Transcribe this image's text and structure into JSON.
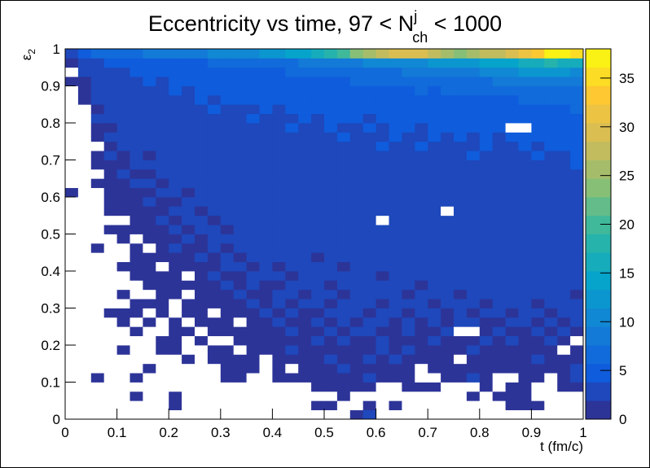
{
  "chart_data": {
    "type": "heatmap",
    "title_parts": [
      "Eccentricity vs time, 97 < N",
      "j",
      "ch",
      " < 1000"
    ],
    "x_label": "t (fm/c)",
    "y_label_parts": [
      "ε",
      "2"
    ],
    "xlim": [
      0,
      1
    ],
    "ylim": [
      0,
      1
    ],
    "zlim": [
      0,
      38
    ],
    "xticks": [
      0,
      0.1,
      0.2,
      0.3,
      0.4,
      0.5,
      0.6,
      0.7,
      0.8,
      0.9,
      1
    ],
    "yticks": [
      0,
      0.1,
      0.2,
      0.3,
      0.4,
      0.5,
      0.6,
      0.7,
      0.8,
      0.9,
      1
    ],
    "zticks": [
      0,
      5,
      10,
      15,
      20,
      25,
      30,
      35
    ],
    "contours": 20,
    "colorscale": [
      "#352a87",
      "#0f5cdd",
      "#1481d6",
      "#06a4ca",
      "#2eb7a4",
      "#87bf77",
      "#d1bb59",
      "#fec832",
      "#f9fb0e"
    ],
    "z": [
      [
        0,
        0,
        0,
        0,
        0,
        0,
        0,
        0,
        0,
        0,
        0,
        0,
        0,
        0,
        0,
        0,
        0,
        0,
        0,
        0,
        0,
        0,
        1,
        2,
        0,
        0,
        0,
        0,
        0,
        0,
        0,
        0,
        0,
        0,
        0,
        0,
        0,
        0,
        0,
        0
      ],
      [
        0,
        0,
        0,
        0,
        0,
        0,
        0,
        0,
        1,
        0,
        0,
        0,
        0,
        0,
        0,
        0,
        0,
        0,
        0,
        1,
        1,
        0,
        0,
        1,
        0,
        1,
        0,
        0,
        0,
        0,
        0,
        0,
        0,
        0,
        1,
        1,
        1,
        0,
        0,
        0
      ],
      [
        0,
        0,
        0,
        0,
        0,
        1,
        0,
        0,
        1,
        0,
        0,
        0,
        0,
        0,
        0,
        0,
        0,
        0,
        0,
        0,
        0,
        1,
        0,
        0,
        0,
        0,
        0,
        0,
        0,
        0,
        0,
        1,
        0,
        1,
        1,
        1,
        0,
        0,
        0,
        0
      ],
      [
        0,
        0,
        0,
        0,
        0,
        0,
        0,
        0,
        0,
        0,
        0,
        0,
        0,
        0,
        0,
        0,
        0,
        0,
        0,
        1,
        1,
        1,
        1,
        1,
        0,
        0,
        1,
        1,
        1,
        0,
        0,
        0,
        1,
        0,
        1,
        1,
        0,
        0,
        1,
        1
      ],
      [
        0,
        0,
        1,
        0,
        0,
        1,
        0,
        0,
        0,
        0,
        0,
        0,
        1,
        1,
        0,
        0,
        1,
        1,
        1,
        1,
        1,
        1,
        1,
        2,
        1,
        1,
        1,
        0,
        0,
        1,
        1,
        2,
        1,
        0,
        0,
        1,
        1,
        0,
        1,
        2
      ],
      [
        0,
        0,
        0,
        0,
        0,
        0,
        1,
        0,
        0,
        0,
        0,
        0,
        1,
        1,
        1,
        0,
        1,
        0,
        1,
        1,
        1,
        2,
        1,
        1,
        1,
        1,
        1,
        0,
        1,
        1,
        1,
        1,
        1,
        1,
        1,
        1,
        1,
        1,
        1,
        2
      ],
      [
        0,
        0,
        0,
        0,
        0,
        0,
        0,
        0,
        0,
        1,
        0,
        1,
        1,
        1,
        1,
        0,
        1,
        1,
        1,
        1,
        2,
        1,
        1,
        2,
        1,
        2,
        1,
        1,
        1,
        1,
        0,
        1,
        1,
        1,
        1,
        1,
        2,
        1,
        1,
        1
      ],
      [
        0,
        0,
        0,
        0,
        1,
        0,
        0,
        1,
        1,
        0,
        0,
        1,
        1,
        0,
        1,
        1,
        1,
        2,
        1,
        1,
        1,
        1,
        1,
        1,
        2,
        1,
        2,
        1,
        1,
        1,
        1,
        2,
        1,
        1,
        1,
        1,
        1,
        1,
        0,
        1
      ],
      [
        0,
        0,
        0,
        0,
        0,
        0,
        0,
        1,
        1,
        0,
        1,
        0,
        0,
        1,
        1,
        1,
        1,
        1,
        1,
        2,
        1,
        2,
        1,
        1,
        2,
        1,
        1,
        1,
        2,
        1,
        1,
        1,
        2,
        1,
        2,
        1,
        1,
        2,
        1,
        0
      ],
      [
        0,
        0,
        0,
        0,
        0,
        1,
        0,
        0,
        1,
        1,
        0,
        1,
        1,
        1,
        1,
        1,
        1,
        2,
        1,
        1,
        2,
        1,
        2,
        2,
        1,
        1,
        2,
        1,
        1,
        2,
        0,
        0,
        1,
        2,
        1,
        1,
        2,
        1,
        2,
        1
      ],
      [
        0,
        0,
        0,
        0,
        1,
        0,
        1,
        0,
        1,
        0,
        1,
        1,
        1,
        0,
        1,
        1,
        2,
        1,
        1,
        2,
        1,
        2,
        1,
        2,
        2,
        1,
        2,
        1,
        2,
        1,
        2,
        2,
        1,
        1,
        2,
        2,
        1,
        2,
        1,
        2
      ],
      [
        0,
        0,
        0,
        1,
        1,
        1,
        0,
        1,
        0,
        1,
        1,
        0,
        1,
        1,
        1,
        2,
        1,
        2,
        1,
        1,
        2,
        2,
        2,
        1,
        2,
        3,
        1,
        2,
        2,
        1,
        2,
        1,
        2,
        2,
        1,
        2,
        2,
        1,
        2,
        2
      ],
      [
        0,
        0,
        0,
        0,
        0,
        1,
        1,
        1,
        0,
        1,
        1,
        1,
        1,
        1,
        2,
        1,
        2,
        1,
        2,
        2,
        1,
        2,
        2,
        2,
        1,
        2,
        2,
        2,
        1,
        2,
        2,
        2,
        1,
        2,
        2,
        2,
        1,
        2,
        2,
        2
      ],
      [
        0,
        0,
        0,
        0,
        1,
        0,
        0,
        1,
        1,
        0,
        1,
        1,
        1,
        2,
        1,
        1,
        2,
        2,
        1,
        2,
        2,
        1,
        2,
        2,
        2,
        2,
        1,
        2,
        2,
        2,
        1,
        2,
        2,
        3,
        2,
        2,
        2,
        2,
        2,
        1
      ],
      [
        0,
        0,
        0,
        0,
        0,
        0,
        1,
        1,
        1,
        1,
        1,
        1,
        2,
        1,
        2,
        1,
        1,
        2,
        2,
        2,
        1,
        2,
        2,
        2,
        2,
        2,
        2,
        1,
        2,
        2,
        2,
        2,
        2,
        2,
        2,
        2,
        2,
        2,
        2,
        2
      ],
      [
        0,
        0,
        0,
        0,
        0,
        1,
        1,
        1,
        1,
        0,
        1,
        2,
        1,
        1,
        2,
        2,
        2,
        1,
        2,
        2,
        2,
        2,
        2,
        2,
        1,
        2,
        2,
        2,
        2,
        3,
        2,
        2,
        2,
        2,
        2,
        2,
        2,
        3,
        2,
        2
      ],
      [
        0,
        0,
        0,
        0,
        1,
        1,
        1,
        0,
        1,
        1,
        1,
        1,
        2,
        2,
        1,
        2,
        1,
        2,
        2,
        2,
        2,
        1,
        2,
        2,
        2,
        2,
        2,
        2,
        3,
        2,
        2,
        2,
        2,
        2,
        2,
        2,
        2,
        2,
        3,
        2
      ],
      [
        0,
        0,
        0,
        0,
        0,
        1,
        1,
        1,
        1,
        1,
        2,
        1,
        2,
        1,
        2,
        2,
        2,
        2,
        2,
        1,
        2,
        2,
        2,
        2,
        2,
        2,
        3,
        2,
        2,
        2,
        2,
        3,
        2,
        2,
        2,
        3,
        2,
        2,
        2,
        2
      ],
      [
        0,
        0,
        1,
        0,
        0,
        1,
        0,
        1,
        2,
        1,
        1,
        2,
        1,
        2,
        2,
        2,
        2,
        2,
        2,
        2,
        2,
        3,
        2,
        2,
        2,
        2,
        2,
        2,
        3,
        2,
        2,
        2,
        3,
        2,
        2,
        2,
        2,
        3,
        2,
        3
      ],
      [
        0,
        0,
        0,
        0,
        1,
        0,
        1,
        1,
        1,
        2,
        1,
        2,
        2,
        2,
        2,
        2,
        2,
        3,
        2,
        2,
        2,
        2,
        3,
        2,
        2,
        3,
        2,
        2,
        2,
        2,
        3,
        2,
        2,
        3,
        2,
        3,
        2,
        2,
        3,
        2
      ],
      [
        0,
        0,
        0,
        1,
        1,
        1,
        1,
        1,
        2,
        1,
        2,
        2,
        1,
        2,
        2,
        2,
        2,
        2,
        2,
        3,
        2,
        2,
        2,
        3,
        2,
        2,
        3,
        2,
        3,
        2,
        2,
        3,
        2,
        2,
        3,
        2,
        3,
        2,
        2,
        3
      ],
      [
        0,
        0,
        0,
        0,
        0,
        1,
        1,
        2,
        1,
        2,
        2,
        1,
        2,
        2,
        3,
        2,
        2,
        2,
        2,
        2,
        3,
        2,
        2,
        2,
        0,
        2,
        3,
        2,
        2,
        3,
        2,
        2,
        3,
        2,
        3,
        2,
        2,
        3,
        2,
        3
      ],
      [
        0,
        0,
        0,
        1,
        1,
        1,
        1,
        1,
        2,
        2,
        1,
        2,
        2,
        2,
        2,
        2,
        3,
        2,
        2,
        3,
        2,
        2,
        3,
        2,
        2,
        3,
        2,
        3,
        2,
        0,
        2,
        2,
        3,
        2,
        3,
        3,
        2,
        2,
        3,
        3
      ],
      [
        0,
        0,
        0,
        1,
        1,
        1,
        2,
        1,
        1,
        2,
        2,
        2,
        2,
        2,
        2,
        3,
        2,
        2,
        3,
        2,
        2,
        3,
        2,
        3,
        2,
        2,
        3,
        2,
        3,
        2,
        3,
        2,
        2,
        3,
        2,
        3,
        3,
        2,
        3,
        3
      ],
      [
        1,
        0,
        0,
        1,
        1,
        1,
        1,
        2,
        2,
        1,
        2,
        2,
        3,
        2,
        2,
        2,
        2,
        3,
        2,
        2,
        3,
        2,
        2,
        2,
        3,
        2,
        3,
        3,
        2,
        3,
        2,
        3,
        3,
        2,
        3,
        2,
        3,
        3,
        2,
        3
      ],
      [
        0,
        0,
        1,
        1,
        1,
        2,
        2,
        1,
        2,
        2,
        2,
        2,
        2,
        2,
        3,
        2,
        2,
        2,
        3,
        2,
        3,
        2,
        3,
        2,
        2,
        3,
        2,
        3,
        3,
        2,
        3,
        3,
        2,
        3,
        2,
        3,
        3,
        3,
        3,
        3
      ],
      [
        0,
        0,
        0,
        1,
        2,
        1,
        1,
        2,
        2,
        2,
        2,
        3,
        2,
        2,
        2,
        3,
        2,
        3,
        2,
        3,
        2,
        3,
        2,
        3,
        3,
        2,
        3,
        2,
        3,
        3,
        3,
        2,
        3,
        3,
        3,
        2,
        3,
        3,
        3,
        3
      ],
      [
        0,
        0,
        1,
        1,
        1,
        2,
        2,
        2,
        2,
        2,
        2,
        2,
        3,
        2,
        3,
        2,
        3,
        2,
        3,
        3,
        2,
        3,
        3,
        2,
        3,
        3,
        3,
        3,
        2,
        3,
        3,
        3,
        3,
        3,
        3,
        3,
        3,
        3,
        3,
        4
      ],
      [
        0,
        0,
        1,
        2,
        1,
        2,
        1,
        2,
        2,
        3,
        2,
        3,
        2,
        3,
        2,
        3,
        3,
        2,
        3,
        2,
        3,
        3,
        3,
        3,
        3,
        3,
        3,
        3,
        3,
        3,
        3,
        4,
        3,
        3,
        3,
        3,
        4,
        3,
        3,
        4
      ],
      [
        0,
        0,
        0,
        1,
        2,
        2,
        2,
        2,
        3,
        2,
        3,
        2,
        3,
        3,
        3,
        2,
        3,
        3,
        3,
        3,
        3,
        3,
        3,
        3,
        4,
        3,
        3,
        4,
        3,
        3,
        3,
        3,
        4,
        3,
        3,
        4,
        3,
        4,
        4,
        4
      ],
      [
        0,
        0,
        1,
        2,
        2,
        2,
        2,
        3,
        2,
        3,
        3,
        3,
        3,
        2,
        3,
        3,
        3,
        3,
        3,
        3,
        3,
        4,
        3,
        3,
        3,
        4,
        3,
        3,
        4,
        3,
        4,
        3,
        4,
        3,
        4,
        4,
        4,
        4,
        4,
        5
      ],
      [
        0,
        0,
        1,
        1,
        2,
        2,
        3,
        2,
        3,
        2,
        3,
        3,
        3,
        3,
        3,
        3,
        3,
        4,
        3,
        3,
        4,
        3,
        3,
        4,
        3,
        4,
        4,
        3,
        4,
        4,
        4,
        4,
        4,
        4,
        0,
        0,
        4,
        4,
        5,
        5
      ],
      [
        0,
        0,
        2,
        2,
        2,
        3,
        2,
        3,
        3,
        3,
        3,
        3,
        3,
        3,
        4,
        3,
        3,
        3,
        4,
        3,
        4,
        4,
        4,
        3,
        4,
        4,
        4,
        4,
        4,
        4,
        4,
        4,
        5,
        4,
        4,
        4,
        5,
        5,
        5,
        5
      ],
      [
        0,
        0,
        1,
        2,
        3,
        2,
        3,
        3,
        3,
        3,
        3,
        4,
        3,
        3,
        3,
        4,
        3,
        4,
        4,
        4,
        4,
        4,
        4,
        4,
        4,
        4,
        4,
        5,
        4,
        5,
        4,
        5,
        5,
        4,
        5,
        5,
        5,
        5,
        5,
        6
      ],
      [
        0,
        1,
        2,
        2,
        2,
        3,
        3,
        3,
        3,
        3,
        4,
        3,
        4,
        4,
        4,
        4,
        4,
        4,
        4,
        4,
        4,
        4,
        5,
        4,
        5,
        5,
        5,
        5,
        5,
        5,
        5,
        5,
        5,
        5,
        5,
        6,
        6,
        6,
        6,
        6
      ],
      [
        0,
        1,
        2,
        3,
        3,
        3,
        3,
        3,
        4,
        3,
        4,
        4,
        4,
        4,
        4,
        4,
        4,
        5,
        4,
        5,
        5,
        5,
        5,
        5,
        5,
        5,
        5,
        6,
        5,
        6,
        6,
        6,
        6,
        6,
        6,
        7,
        7,
        7,
        7,
        7
      ],
      [
        1,
        1,
        2,
        2,
        3,
        3,
        4,
        3,
        4,
        4,
        4,
        4,
        4,
        5,
        4,
        5,
        5,
        5,
        5,
        5,
        5,
        5,
        6,
        6,
        6,
        6,
        6,
        6,
        7,
        6,
        7,
        7,
        7,
        8,
        8,
        8,
        8,
        9,
        9,
        8
      ],
      [
        0,
        2,
        3,
        3,
        3,
        4,
        4,
        4,
        4,
        4,
        5,
        5,
        5,
        5,
        5,
        5,
        5,
        6,
        6,
        6,
        6,
        6,
        7,
        7,
        7,
        7,
        8,
        8,
        8,
        8,
        9,
        9,
        10,
        10,
        11,
        12,
        12,
        13,
        12,
        11
      ],
      [
        1,
        2,
        3,
        4,
        4,
        4,
        5,
        5,
        5,
        5,
        5,
        6,
        6,
        6,
        6,
        7,
        7,
        7,
        8,
        8,
        8,
        9,
        9,
        10,
        10,
        10,
        11,
        11,
        12,
        12,
        12,
        13,
        14,
        14,
        15,
        16,
        17,
        18,
        17,
        16
      ],
      [
        2,
        5,
        6,
        6,
        7,
        7,
        8,
        8,
        8,
        9,
        9,
        10,
        10,
        11,
        11,
        12,
        13,
        14,
        15,
        17,
        18,
        20,
        24,
        26,
        28,
        30,
        29,
        30,
        28,
        25,
        24,
        26,
        27,
        28,
        30,
        32,
        34,
        37,
        37,
        36
      ]
    ]
  }
}
